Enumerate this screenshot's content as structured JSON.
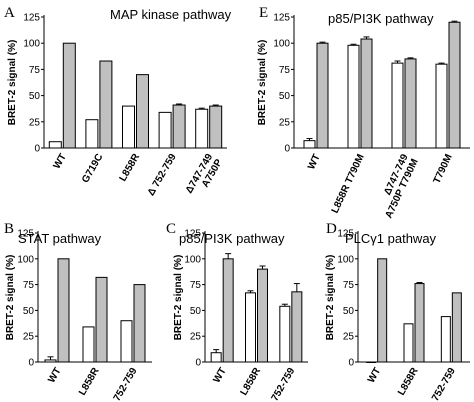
{
  "colors": {
    "open": "#ffffff",
    "filled": "#c0c0c0",
    "stroke": "#000000"
  },
  "chart_data": [
    {
      "type": "bar",
      "panel_label": "A",
      "title": "MAP kinase pathway",
      "ylabel": "BRET-2 signal (%)",
      "ylim": [
        0,
        125
      ],
      "yticks": [
        0,
        25,
        50,
        75,
        100,
        125
      ],
      "categories": [
        [
          "WT"
        ],
        [
          "G719C"
        ],
        [
          "L858R"
        ],
        [
          "Δ 752-759"
        ],
        [
          "Δ747-749",
          "A750P"
        ]
      ],
      "series": [
        {
          "fill": "open",
          "values": [
            6,
            27,
            40,
            34,
            37
          ],
          "errors": [
            0,
            0,
            0,
            0,
            1
          ]
        },
        {
          "fill": "filled",
          "values": [
            100,
            83,
            70,
            41,
            40
          ],
          "errors": [
            0,
            0,
            0,
            1,
            1
          ]
        }
      ]
    },
    {
      "type": "bar",
      "panel_label": "E",
      "title": "p85/PI3K pathway",
      "ylabel": "BRET-2 signal (%)",
      "ylim": [
        0,
        125
      ],
      "yticks": [
        0,
        25,
        50,
        75,
        100,
        125
      ],
      "categories": [
        [
          "WT"
        ],
        [
          "L858R T790M"
        ],
        [
          "Δ747-749",
          "A750P T790M"
        ],
        [
          "T790M"
        ]
      ],
      "series": [
        {
          "fill": "open",
          "values": [
            7,
            98,
            81,
            80
          ],
          "errors": [
            2,
            1,
            2,
            1
          ]
        },
        {
          "fill": "filled",
          "values": [
            100,
            104,
            85,
            120
          ],
          "errors": [
            1,
            2,
            1,
            1
          ]
        }
      ]
    },
    {
      "type": "bar",
      "panel_label": "B",
      "title": "STAT pathway",
      "ylabel": "BRET-2 signal (%)",
      "ylim": [
        0,
        125
      ],
      "yticks": [
        0,
        25,
        50,
        75,
        100,
        125
      ],
      "categories": [
        [
          "WT"
        ],
        [
          "L858R"
        ],
        [
          "Δ 752-759"
        ]
      ],
      "series": [
        {
          "fill": "open",
          "values": [
            2,
            34,
            40
          ],
          "errors": [
            3,
            0,
            0
          ]
        },
        {
          "fill": "filled",
          "values": [
            100,
            82,
            75
          ],
          "errors": [
            0,
            0,
            0
          ]
        }
      ]
    },
    {
      "type": "bar",
      "panel_label": "C",
      "title": "p85/PI3K pathway",
      "ylabel": "BRET-2 signal (%)",
      "ylim": [
        0,
        125
      ],
      "yticks": [
        0,
        25,
        50,
        75,
        100,
        125
      ],
      "categories": [
        [
          "WT"
        ],
        [
          "L858R"
        ],
        [
          "Δ 752-759"
        ]
      ],
      "series": [
        {
          "fill": "open",
          "values": [
            9,
            67,
            54
          ],
          "errors": [
            3,
            2,
            2
          ]
        },
        {
          "fill": "filled",
          "values": [
            100,
            90,
            68
          ],
          "errors": [
            5,
            3,
            8
          ]
        }
      ]
    },
    {
      "type": "bar",
      "panel_label": "D",
      "title": "PLCγ1 pathway",
      "ylabel": "BRET-2 signal (%)",
      "ylim": [
        0,
        125
      ],
      "yticks": [
        0,
        25,
        50,
        75,
        100,
        125
      ],
      "categories": [
        [
          "WT"
        ],
        [
          "L858R"
        ],
        [
          "Δ 752-759"
        ]
      ],
      "series": [
        {
          "fill": "open",
          "values": [
            0,
            37,
            44
          ],
          "errors": [
            0,
            0,
            0
          ]
        },
        {
          "fill": "filled",
          "values": [
            100,
            76,
            67
          ],
          "errors": [
            0,
            1,
            0
          ]
        }
      ]
    }
  ]
}
